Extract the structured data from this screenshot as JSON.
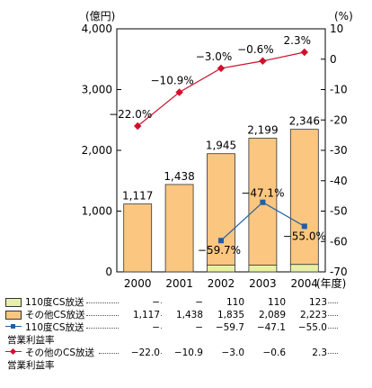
{
  "chart_data": {
    "type": "bar+line",
    "categories": [
      "2000",
      "2001",
      "2002",
      "2003",
      "2004"
    ],
    "x_suffix": "(年度)",
    "y_left": {
      "unit": "(億円)",
      "ylim": [
        0,
        4000
      ],
      "ticks": [
        "0",
        "1,000",
        "2,000",
        "3,000",
        "4,000"
      ],
      "tick_values": [
        0,
        1000,
        2000,
        3000,
        4000
      ]
    },
    "y_right": {
      "unit": "(%)",
      "ylim": [
        -70,
        10
      ],
      "ticks": [
        "10",
        "0",
        "-10",
        "-20",
        "-30",
        "-40",
        "-50",
        "-60",
        "-70"
      ],
      "tick_values": [
        10,
        0,
        -10,
        -20,
        -30,
        -40,
        -50,
        -60,
        -70
      ]
    },
    "bar_series": [
      {
        "name": "110度CS放送",
        "values": [
          0,
          0,
          110,
          110,
          123
        ],
        "color": "#e8f0a8"
      },
      {
        "name": "その他CS放送",
        "values": [
          1117,
          1438,
          1835,
          2089,
          2223
        ],
        "color": "#fbc680"
      }
    ],
    "bar_totals": [
      "1,117",
      "1,438",
      "1,945",
      "2,199",
      "2,346"
    ],
    "line_series": [
      {
        "name": "110度CS放送 営業利益率",
        "values": [
          null,
          null,
          -59.7,
          -47.1,
          -55.0
        ],
        "labels": [
          "",
          "",
          "−59.7%",
          "−47.1%",
          "−55.0%"
        ],
        "color": "#1f5fa0",
        "marker": "square"
      },
      {
        "name": "その他のCS放送 営業利益率",
        "values": [
          -22.0,
          -10.9,
          -3.0,
          -0.6,
          2.3
        ],
        "labels": [
          "−22.0%",
          "−10.9%",
          "−3.0%",
          "−0.6%",
          "2.3%"
        ],
        "color": "#d0102c",
        "marker": "diamond"
      }
    ]
  },
  "legend": [
    {
      "name_line1": "110度CS放送",
      "name_line2": "",
      "cells": [
        "−",
        "−",
        "110",
        "110",
        "123"
      ]
    },
    {
      "name_line1": "その他CS放送",
      "name_line2": "",
      "cells": [
        "1,117",
        "1,438",
        "1,835",
        "2,089",
        "2,223"
      ]
    },
    {
      "name_line1": "110度CS放送",
      "name_line2": "営業利益率",
      "cells": [
        "−",
        "−",
        "−59.7",
        "−47.1",
        "−55.0"
      ]
    },
    {
      "name_line1": "その他のCS放送",
      "name_line2": "営業利益率",
      "cells": [
        "−22.0",
        "−10.9",
        "−3.0",
        "−0.6",
        "2.3"
      ]
    }
  ]
}
